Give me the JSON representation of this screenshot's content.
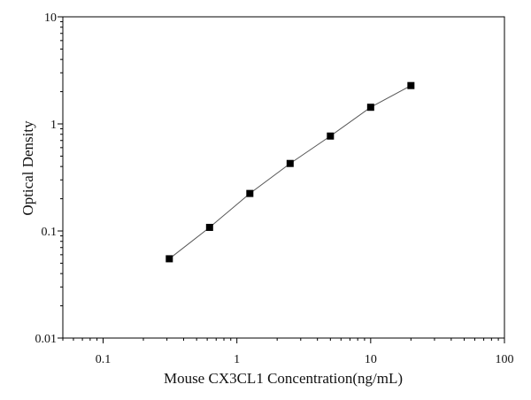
{
  "chart_data": {
    "type": "scatter",
    "title": "",
    "xlabel": "Mouse CX3CL1 Concentration(ng/mL)",
    "ylabel": "Optical Density",
    "x_scale": "log",
    "y_scale": "log",
    "xlim": [
      0.05,
      100
    ],
    "ylim": [
      0.01,
      10
    ],
    "x_tick_labels": [
      "0.1",
      "1",
      "10",
      "100"
    ],
    "x_tick_values": [
      0.1,
      1,
      10,
      100
    ],
    "y_tick_labels": [
      "0.01",
      "0.1",
      "1",
      "10"
    ],
    "y_tick_values": [
      0.01,
      0.1,
      1,
      10
    ],
    "grid": false,
    "legend": "none",
    "series": [
      {
        "x": [
          0.3125,
          0.625,
          1.25,
          2.5,
          5,
          10,
          20
        ],
        "y": [
          0.055,
          0.108,
          0.224,
          0.427,
          0.77,
          1.43,
          2.28
        ],
        "marker": "square",
        "color": "#000000",
        "fit_line": true,
        "line_color": "#555555"
      }
    ]
  }
}
